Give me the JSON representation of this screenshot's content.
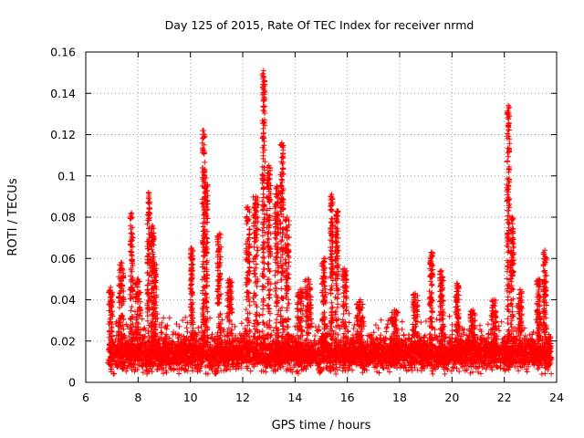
{
  "chart_data": {
    "type": "scatter",
    "title": "Day 125 of 2015, Rate Of TEC Index for receiver nrmd",
    "xlabel": "GPS time / hours",
    "ylabel": "ROTI / TECUs",
    "xlim": [
      6,
      24
    ],
    "ylim": [
      0,
      0.16
    ],
    "xticks": [
      6,
      8,
      10,
      12,
      14,
      16,
      18,
      20,
      22,
      24
    ],
    "yticks": [
      0,
      0.02,
      0.04,
      0.06,
      0.08,
      0.1,
      0.12,
      0.14,
      0.16
    ],
    "xtick_labels": [
      "6",
      "8",
      "10",
      "12",
      "14",
      "16",
      "18",
      "20",
      "22",
      "24"
    ],
    "ytick_labels": [
      "0",
      "0.02",
      "0.04",
      "0.06",
      "0.08",
      "0.1",
      "0.12",
      "0.14",
      "0.16"
    ],
    "grid": true,
    "marker": "+",
    "color": "#ff0000",
    "data_range": {
      "x_start": 6.85,
      "x_end": 23.8
    },
    "baseline": {
      "typical_min": 0.005,
      "typical_max": 0.03
    },
    "spikes": [
      {
        "x": 6.95,
        "width": 0.15,
        "peak": 0.046
      },
      {
        "x": 7.35,
        "width": 0.2,
        "peak": 0.058
      },
      {
        "x": 7.75,
        "width": 0.12,
        "peak": 0.082
      },
      {
        "x": 8.0,
        "width": 0.2,
        "peak": 0.05
      },
      {
        "x": 8.4,
        "width": 0.1,
        "peak": 0.092
      },
      {
        "x": 8.55,
        "width": 0.12,
        "peak": 0.076
      },
      {
        "x": 8.65,
        "width": 0.1,
        "peak": 0.057
      },
      {
        "x": 10.05,
        "width": 0.1,
        "peak": 0.065
      },
      {
        "x": 10.5,
        "width": 0.1,
        "peak": 0.122
      },
      {
        "x": 10.6,
        "width": 0.12,
        "peak": 0.099
      },
      {
        "x": 11.1,
        "width": 0.15,
        "peak": 0.072
      },
      {
        "x": 11.5,
        "width": 0.2,
        "peak": 0.05
      },
      {
        "x": 12.2,
        "width": 0.15,
        "peak": 0.085
      },
      {
        "x": 12.5,
        "width": 0.2,
        "peak": 0.09
      },
      {
        "x": 12.8,
        "width": 0.1,
        "peak": 0.151
      },
      {
        "x": 13.0,
        "width": 0.15,
        "peak": 0.105
      },
      {
        "x": 13.3,
        "width": 0.15,
        "peak": 0.095
      },
      {
        "x": 13.5,
        "width": 0.12,
        "peak": 0.116
      },
      {
        "x": 13.7,
        "width": 0.15,
        "peak": 0.08
      },
      {
        "x": 14.2,
        "width": 0.25,
        "peak": 0.045
      },
      {
        "x": 14.5,
        "width": 0.25,
        "peak": 0.05
      },
      {
        "x": 15.1,
        "width": 0.15,
        "peak": 0.06
      },
      {
        "x": 15.4,
        "width": 0.1,
        "peak": 0.091
      },
      {
        "x": 15.6,
        "width": 0.12,
        "peak": 0.083
      },
      {
        "x": 15.9,
        "width": 0.15,
        "peak": 0.055
      },
      {
        "x": 16.5,
        "width": 0.3,
        "peak": 0.04
      },
      {
        "x": 17.8,
        "width": 0.3,
        "peak": 0.035
      },
      {
        "x": 18.6,
        "width": 0.2,
        "peak": 0.043
      },
      {
        "x": 19.2,
        "width": 0.12,
        "peak": 0.063
      },
      {
        "x": 19.6,
        "width": 0.15,
        "peak": 0.054
      },
      {
        "x": 20.2,
        "width": 0.12,
        "peak": 0.048
      },
      {
        "x": 20.8,
        "width": 0.2,
        "peak": 0.035
      },
      {
        "x": 21.6,
        "width": 0.2,
        "peak": 0.04
      },
      {
        "x": 22.15,
        "width": 0.1,
        "peak": 0.134
      },
      {
        "x": 22.3,
        "width": 0.12,
        "peak": 0.08
      },
      {
        "x": 22.6,
        "width": 0.15,
        "peak": 0.045
      },
      {
        "x": 23.3,
        "width": 0.15,
        "peak": 0.05
      },
      {
        "x": 23.55,
        "width": 0.12,
        "peak": 0.064
      }
    ]
  }
}
